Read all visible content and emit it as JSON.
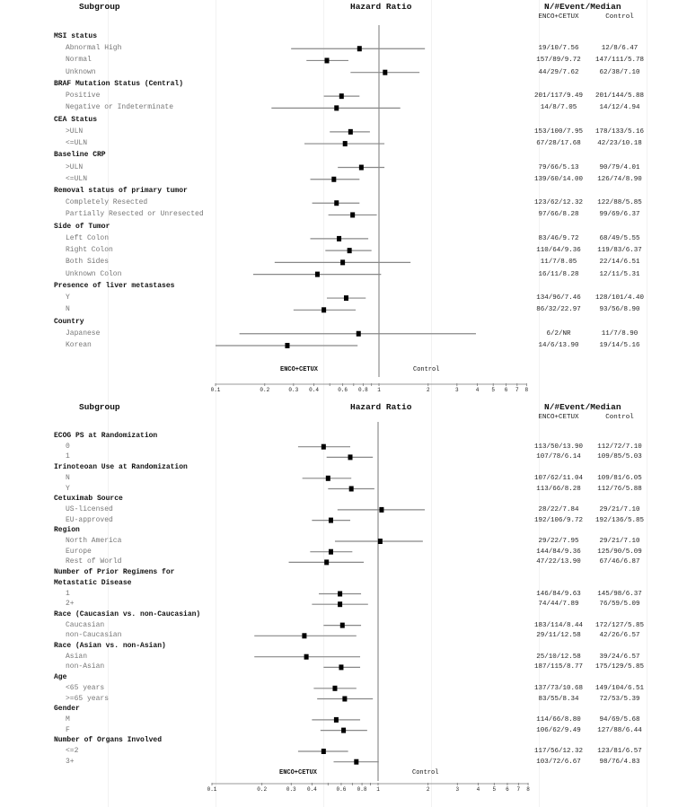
{
  "chart_data": [
    {
      "type": "forest",
      "x_scale": "log",
      "xlim": [
        0.1,
        8
      ],
      "reference_line": 1,
      "xticks": [
        0.1,
        0.2,
        0.3,
        0.4,
        0.5,
        0.6,
        0.7,
        0.8,
        0.9,
        1,
        2,
        3,
        4,
        5,
        6,
        7,
        8
      ],
      "xtick_labels": [
        "0.1",
        "0.2",
        "0.3",
        "0.4",
        "",
        "0.6",
        "",
        "0.8",
        "",
        "1",
        "2",
        "3",
        "4",
        "5",
        "6",
        "7",
        "8"
      ],
      "headers": {
        "subgroup": "Subgroup",
        "hr": "Hazard Ratio",
        "counts": "N/#Event/Median",
        "arm1": "ENCO+CETUX",
        "arm2": "Control"
      },
      "favors_left": "ENCO+CETUX",
      "favors_right": "Control",
      "rows": [
        {
          "type": "header",
          "label": "MSI status"
        },
        {
          "type": "item",
          "label": "Abnormal High",
          "enco": "19/10/7.56",
          "control": "12/8/6.47",
          "hr": 0.76,
          "lo": 0.29,
          "hi": 1.91
        },
        {
          "type": "item",
          "label": "Normal",
          "enco": "157/89/9.72",
          "control": "147/111/5.78",
          "hr": 0.48,
          "lo": 0.36,
          "hi": 0.65
        },
        {
          "type": "item",
          "label": "Unknown",
          "enco": "44/29/7.62",
          "control": "62/38/7.10",
          "hr": 1.09,
          "lo": 0.67,
          "hi": 1.77
        },
        {
          "type": "header",
          "label": "BRAF Mutation Status (Central)"
        },
        {
          "type": "item",
          "label": "Positive",
          "enco": "201/117/9.49",
          "control": "201/144/5.88",
          "hr": 0.59,
          "lo": 0.46,
          "hi": 0.76
        },
        {
          "type": "item",
          "label": "Negative or Indeterminate",
          "enco": "14/8/7.05",
          "control": "14/12/4.94",
          "hr": 0.55,
          "lo": 0.22,
          "hi": 1.35
        },
        {
          "type": "header",
          "label": "CEA Status"
        },
        {
          "type": "item",
          "label": ">ULN",
          "enco": "153/100/7.95",
          "control": "178/133/5.16",
          "hr": 0.67,
          "lo": 0.5,
          "hi": 0.88
        },
        {
          "type": "item",
          "label": "<=ULN",
          "enco": "67/28/17.68",
          "control": "42/23/10.18",
          "hr": 0.62,
          "lo": 0.35,
          "hi": 1.08
        },
        {
          "type": "header",
          "label": "Baseline CRP"
        },
        {
          "type": "item",
          "label": ">ULN",
          "enco": "79/66/5.13",
          "control": "90/79/4.01",
          "hr": 0.78,
          "lo": 0.56,
          "hi": 1.08
        },
        {
          "type": "item",
          "label": "<=ULN",
          "enco": "139/60/14.00",
          "control": "126/74/8.90",
          "hr": 0.53,
          "lo": 0.38,
          "hi": 0.76
        },
        {
          "type": "header",
          "label": "Removal status of primary tumor"
        },
        {
          "type": "item",
          "label": "Completely Resected",
          "enco": "123/62/12.32",
          "control": "122/88/5.85",
          "hr": 0.55,
          "lo": 0.39,
          "hi": 0.76
        },
        {
          "type": "item",
          "label": "Partially Resected or Unresected",
          "enco": "97/66/8.28",
          "control": "99/69/6.37",
          "hr": 0.69,
          "lo": 0.49,
          "hi": 0.97
        },
        {
          "type": "header",
          "label": "Side of Tumor"
        },
        {
          "type": "item",
          "label": "Left Colon",
          "enco": "83/46/9.72",
          "control": "68/49/5.55",
          "hr": 0.57,
          "lo": 0.38,
          "hi": 0.86
        },
        {
          "type": "item",
          "label": "Right Colon",
          "enco": "110/64/9.36",
          "control": "119/83/6.37",
          "hr": 0.66,
          "lo": 0.47,
          "hi": 0.9
        },
        {
          "type": "item",
          "label": "Both Sides",
          "enco": "11/7/8.05",
          "control": "22/14/6.51",
          "hr": 0.6,
          "lo": 0.23,
          "hi": 1.56
        },
        {
          "type": "item",
          "label": "Unknown Colon",
          "enco": "16/11/8.28",
          "control": "12/11/5.31",
          "hr": 0.42,
          "lo": 0.17,
          "hi": 1.03
        },
        {
          "type": "header",
          "label": "Presence of liver metastases"
        },
        {
          "type": "item",
          "label": "Y",
          "enco": "134/96/7.46",
          "control": "128/101/4.40",
          "hr": 0.63,
          "lo": 0.48,
          "hi": 0.83
        },
        {
          "type": "item",
          "label": "N",
          "enco": "86/32/22.97",
          "control": "93/56/8.90",
          "hr": 0.46,
          "lo": 0.3,
          "hi": 0.72
        },
        {
          "type": "header",
          "label": "Country"
        },
        {
          "type": "item",
          "label": "Japanese",
          "enco": "6/2/NR",
          "control": "11/7/8.90",
          "hr": 0.75,
          "lo": 0.14,
          "hi": 3.92
        },
        {
          "type": "item",
          "label": "Korean",
          "enco": "14/6/13.90",
          "control": "19/14/5.16",
          "hr": 0.275,
          "lo": 0.1,
          "hi": 0.74
        }
      ]
    },
    {
      "type": "forest",
      "x_scale": "log",
      "xlim": [
        0.1,
        8
      ],
      "reference_line": 1,
      "xticks": [
        0.1,
        0.2,
        0.3,
        0.4,
        0.5,
        0.6,
        0.7,
        0.8,
        0.9,
        1,
        2,
        3,
        4,
        5,
        6,
        7,
        8
      ],
      "xtick_labels": [
        "0.1",
        "0.2",
        "0.3",
        "0.4",
        "",
        "0.6",
        "",
        "0.8",
        "",
        "1",
        "2",
        "3",
        "4",
        "5",
        "6",
        "7",
        "8"
      ],
      "headers": {
        "subgroup": "Subgroup",
        "hr": "Hazard Ratio",
        "counts": "N/#Event/Median",
        "arm1": "ENCO+CETUX",
        "arm2": "Control"
      },
      "favors_left": "ENCO+CETUX",
      "favors_right": "Control",
      "rows": [
        {
          "type": "header",
          "label": "ECOG PS at Randomization"
        },
        {
          "type": "item",
          "label": "0",
          "enco": "113/50/13.90",
          "control": "112/72/7.10",
          "hr": 0.47,
          "lo": 0.33,
          "hi": 0.68
        },
        {
          "type": "item",
          "label": "1",
          "enco": "107/78/6.14",
          "control": "109/85/5.03",
          "hr": 0.68,
          "lo": 0.49,
          "hi": 0.93
        },
        {
          "type": "header",
          "label": "Irinoteoan Use at Randomization"
        },
        {
          "type": "item",
          "label": "N",
          "enco": "107/62/11.04",
          "control": "109/81/6.05",
          "hr": 0.5,
          "lo": 0.35,
          "hi": 0.69
        },
        {
          "type": "item",
          "label": "Y",
          "enco": "113/66/8.28",
          "control": "112/76/5.88",
          "hr": 0.69,
          "lo": 0.5,
          "hi": 0.95
        },
        {
          "type": "header",
          "label": "Cetuximab Source"
        },
        {
          "type": "item",
          "label": "US-licensed",
          "enco": "28/22/7.84",
          "control": "29/21/7.10",
          "hr": 1.05,
          "lo": 0.57,
          "hi": 1.91
        },
        {
          "type": "item",
          "label": "EU-approved",
          "enco": "192/106/9.72",
          "control": "192/136/5.85",
          "hr": 0.52,
          "lo": 0.4,
          "hi": 0.68
        },
        {
          "type": "header",
          "label": "Region"
        },
        {
          "type": "item",
          "label": "North America",
          "enco": "29/22/7.95",
          "control": "29/21/7.10",
          "hr": 1.03,
          "lo": 0.55,
          "hi": 1.86
        },
        {
          "type": "item",
          "label": "Europe",
          "enco": "144/84/9.36",
          "control": "125/90/5.09",
          "hr": 0.52,
          "lo": 0.39,
          "hi": 0.7
        },
        {
          "type": "item",
          "label": "Rest of World",
          "enco": "47/22/13.90",
          "control": "67/46/6.87",
          "hr": 0.49,
          "lo": 0.29,
          "hi": 0.82
        },
        {
          "type": "header",
          "label": "Number of Prior Regimens for"
        },
        {
          "type": "header",
          "label": "Metastatic Disease"
        },
        {
          "type": "item",
          "label": "1",
          "enco": "146/84/9.63",
          "control": "145/98/6.37",
          "hr": 0.59,
          "lo": 0.44,
          "hi": 0.79
        },
        {
          "type": "item",
          "label": "2+",
          "enco": "74/44/7.89",
          "control": "76/59/5.09",
          "hr": 0.59,
          "lo": 0.4,
          "hi": 0.87
        },
        {
          "type": "header",
          "label": "Race (Caucasian vs. non-Caucasian)"
        },
        {
          "type": "item",
          "label": "Caucasian",
          "enco": "183/114/8.44",
          "control": "172/127/5.85",
          "hr": 0.61,
          "lo": 0.47,
          "hi": 0.79
        },
        {
          "type": "item",
          "label": "non-Caucasian",
          "enco": "29/11/12.58",
          "control": "42/26/6.57",
          "hr": 0.36,
          "lo": 0.18,
          "hi": 0.74
        },
        {
          "type": "header",
          "label": "Race (Asian vs. non-Asian)"
        },
        {
          "type": "item",
          "label": "Asian",
          "enco": "25/10/12.58",
          "control": "39/24/6.57",
          "hr": 0.37,
          "lo": 0.18,
          "hi": 0.78
        },
        {
          "type": "item",
          "label": "non-Asian",
          "enco": "187/115/8.77",
          "control": "175/129/5.85",
          "hr": 0.6,
          "lo": 0.47,
          "hi": 0.78
        },
        {
          "type": "header",
          "label": "Age"
        },
        {
          "type": "item",
          "label": "<65 years",
          "enco": "137/73/10.68",
          "control": "149/104/6.51",
          "hr": 0.55,
          "lo": 0.41,
          "hi": 0.74
        },
        {
          "type": "item",
          "label": ">=65 years",
          "enco": "83/55/8.34",
          "control": "72/53/5.39",
          "hr": 0.63,
          "lo": 0.43,
          "hi": 0.93
        },
        {
          "type": "header",
          "label": "Gender"
        },
        {
          "type": "item",
          "label": "M",
          "enco": "114/66/8.80",
          "control": "94/69/5.68",
          "hr": 0.56,
          "lo": 0.4,
          "hi": 0.78
        },
        {
          "type": "item",
          "label": "F",
          "enco": "106/62/9.49",
          "control": "127/88/6.44",
          "hr": 0.62,
          "lo": 0.45,
          "hi": 0.86
        },
        {
          "type": "header",
          "label": "Number of Organs Involved"
        },
        {
          "type": "item",
          "label": "<=2",
          "enco": "117/56/12.32",
          "control": "123/81/6.57",
          "hr": 0.47,
          "lo": 0.33,
          "hi": 0.66
        },
        {
          "type": "item",
          "label": "3+",
          "enco": "103/72/6.67",
          "control": "98/76/4.83",
          "hr": 0.74,
          "lo": 0.54,
          "hi": 1.01
        }
      ]
    }
  ]
}
